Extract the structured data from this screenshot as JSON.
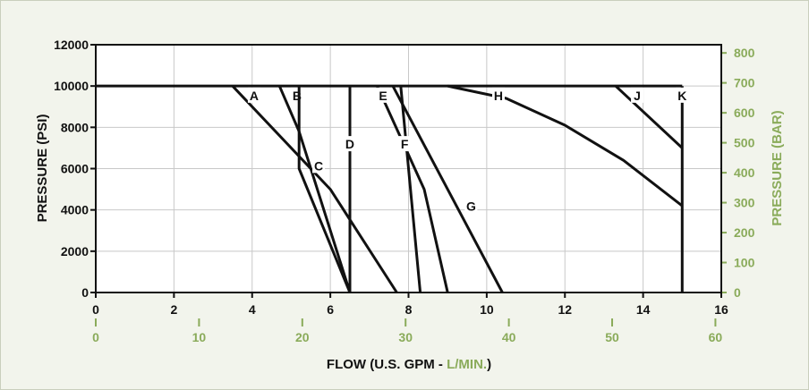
{
  "chart_data": {
    "type": "line",
    "grid": true,
    "colors": {
      "primary": "#111111",
      "secondary_axis": "#8aab5a",
      "grid": "#c8c8c8",
      "background": "#f2f4ec"
    },
    "x_axis": {
      "label_prefix": "FLOW (U.S. GPM - ",
      "label_secondary": "L/MIN.",
      "label_suffix": ")",
      "range": [
        0,
        16
      ],
      "ticks": [
        "0",
        "2",
        "4",
        "6",
        "8",
        "10",
        "12",
        "14",
        "16"
      ]
    },
    "x_axis_secondary": {
      "unit": "L/MIN.",
      "range": [
        0,
        60.57
      ],
      "ticks": [
        "0",
        "10",
        "20",
        "30",
        "40",
        "50",
        "60"
      ]
    },
    "y_axis": {
      "label": "PRESSURE (PSI)",
      "range": [
        0,
        12000
      ],
      "ticks": [
        "0",
        "2000",
        "4000",
        "6000",
        "8000",
        "10000",
        "12000"
      ]
    },
    "y_axis_secondary": {
      "label": "PRESSURE (BAR)",
      "range": [
        0,
        827.4
      ],
      "ticks": [
        "0",
        "100",
        "200",
        "300",
        "400",
        "500",
        "600",
        "700",
        "800"
      ]
    },
    "series": [
      {
        "label": "A",
        "points": [
          [
            3.5,
            10000
          ],
          [
            6,
            5000
          ],
          [
            7.7,
            0
          ]
        ],
        "label_at": [
          4.05,
          9450
        ]
      },
      {
        "label": "B",
        "points": [
          [
            4.7,
            10000
          ],
          [
            5.2,
            7800
          ],
          [
            6.5,
            0
          ]
        ],
        "label_at": [
          5.15,
          9450
        ]
      },
      {
        "label": "C",
        "points": [
          [
            5.2,
            10000
          ],
          [
            5.2,
            6000
          ],
          [
            6.5,
            0
          ]
        ],
        "label_at": [
          5.7,
          6050
        ]
      },
      {
        "label": "D",
        "points": [
          [
            6.5,
            10000
          ],
          [
            6.5,
            0
          ]
        ],
        "label_at": [
          6.5,
          7100
        ]
      },
      {
        "label": "E",
        "points": [
          [
            7.2,
            10000
          ],
          [
            8.4,
            5000
          ],
          [
            9.0,
            0
          ]
        ],
        "label_at": [
          7.35,
          9450
        ]
      },
      {
        "label": "F",
        "points": [
          [
            7.8,
            10000
          ],
          [
            8.3,
            0
          ]
        ],
        "label_at": [
          7.9,
          7100
        ]
      },
      {
        "label": "G",
        "points": [
          [
            7.6,
            10000
          ],
          [
            10.4,
            0
          ]
        ],
        "label_at": [
          9.6,
          4100
        ]
      },
      {
        "label": "H",
        "points": [
          [
            9.0,
            10000
          ],
          [
            10.5,
            9400
          ],
          [
            12,
            8100
          ],
          [
            13.5,
            6400
          ],
          [
            15,
            4200
          ]
        ],
        "label_at": [
          10.3,
          9450
        ]
      },
      {
        "label": "J",
        "points": [
          [
            13.3,
            10000
          ],
          [
            15,
            7000
          ]
        ],
        "label_at": [
          13.85,
          9450
        ]
      },
      {
        "label": "K",
        "points": [
          [
            15,
            10000
          ],
          [
            15,
            0
          ]
        ],
        "label_at": [
          15,
          9450
        ]
      }
    ],
    "max_pressure_line": {
      "y": 10000,
      "x_range": [
        0,
        15
      ]
    }
  }
}
